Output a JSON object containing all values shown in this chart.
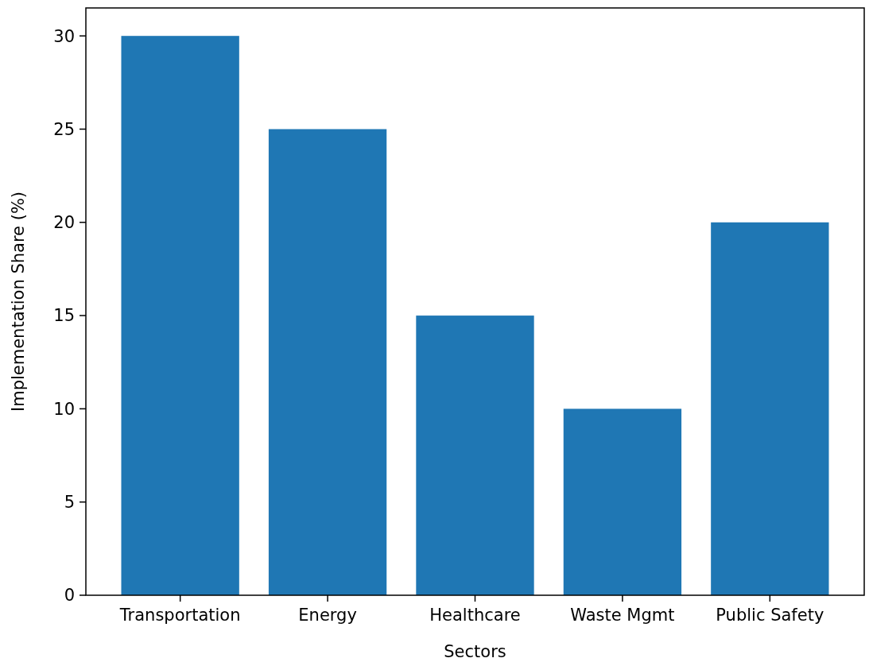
{
  "chart_data": {
    "type": "bar",
    "xlabel": "Sectors",
    "ylabel": "Implementation Share (%)",
    "categories": [
      "Transportation",
      "Energy",
      "Healthcare",
      "Waste Mgmt",
      "Public Safety"
    ],
    "values": [
      30,
      25,
      15,
      10,
      20
    ],
    "color": "#1f77b4",
    "ylim": [
      0,
      31.5
    ],
    "yticks": [
      0,
      5,
      10,
      15,
      20,
      25,
      30
    ]
  }
}
